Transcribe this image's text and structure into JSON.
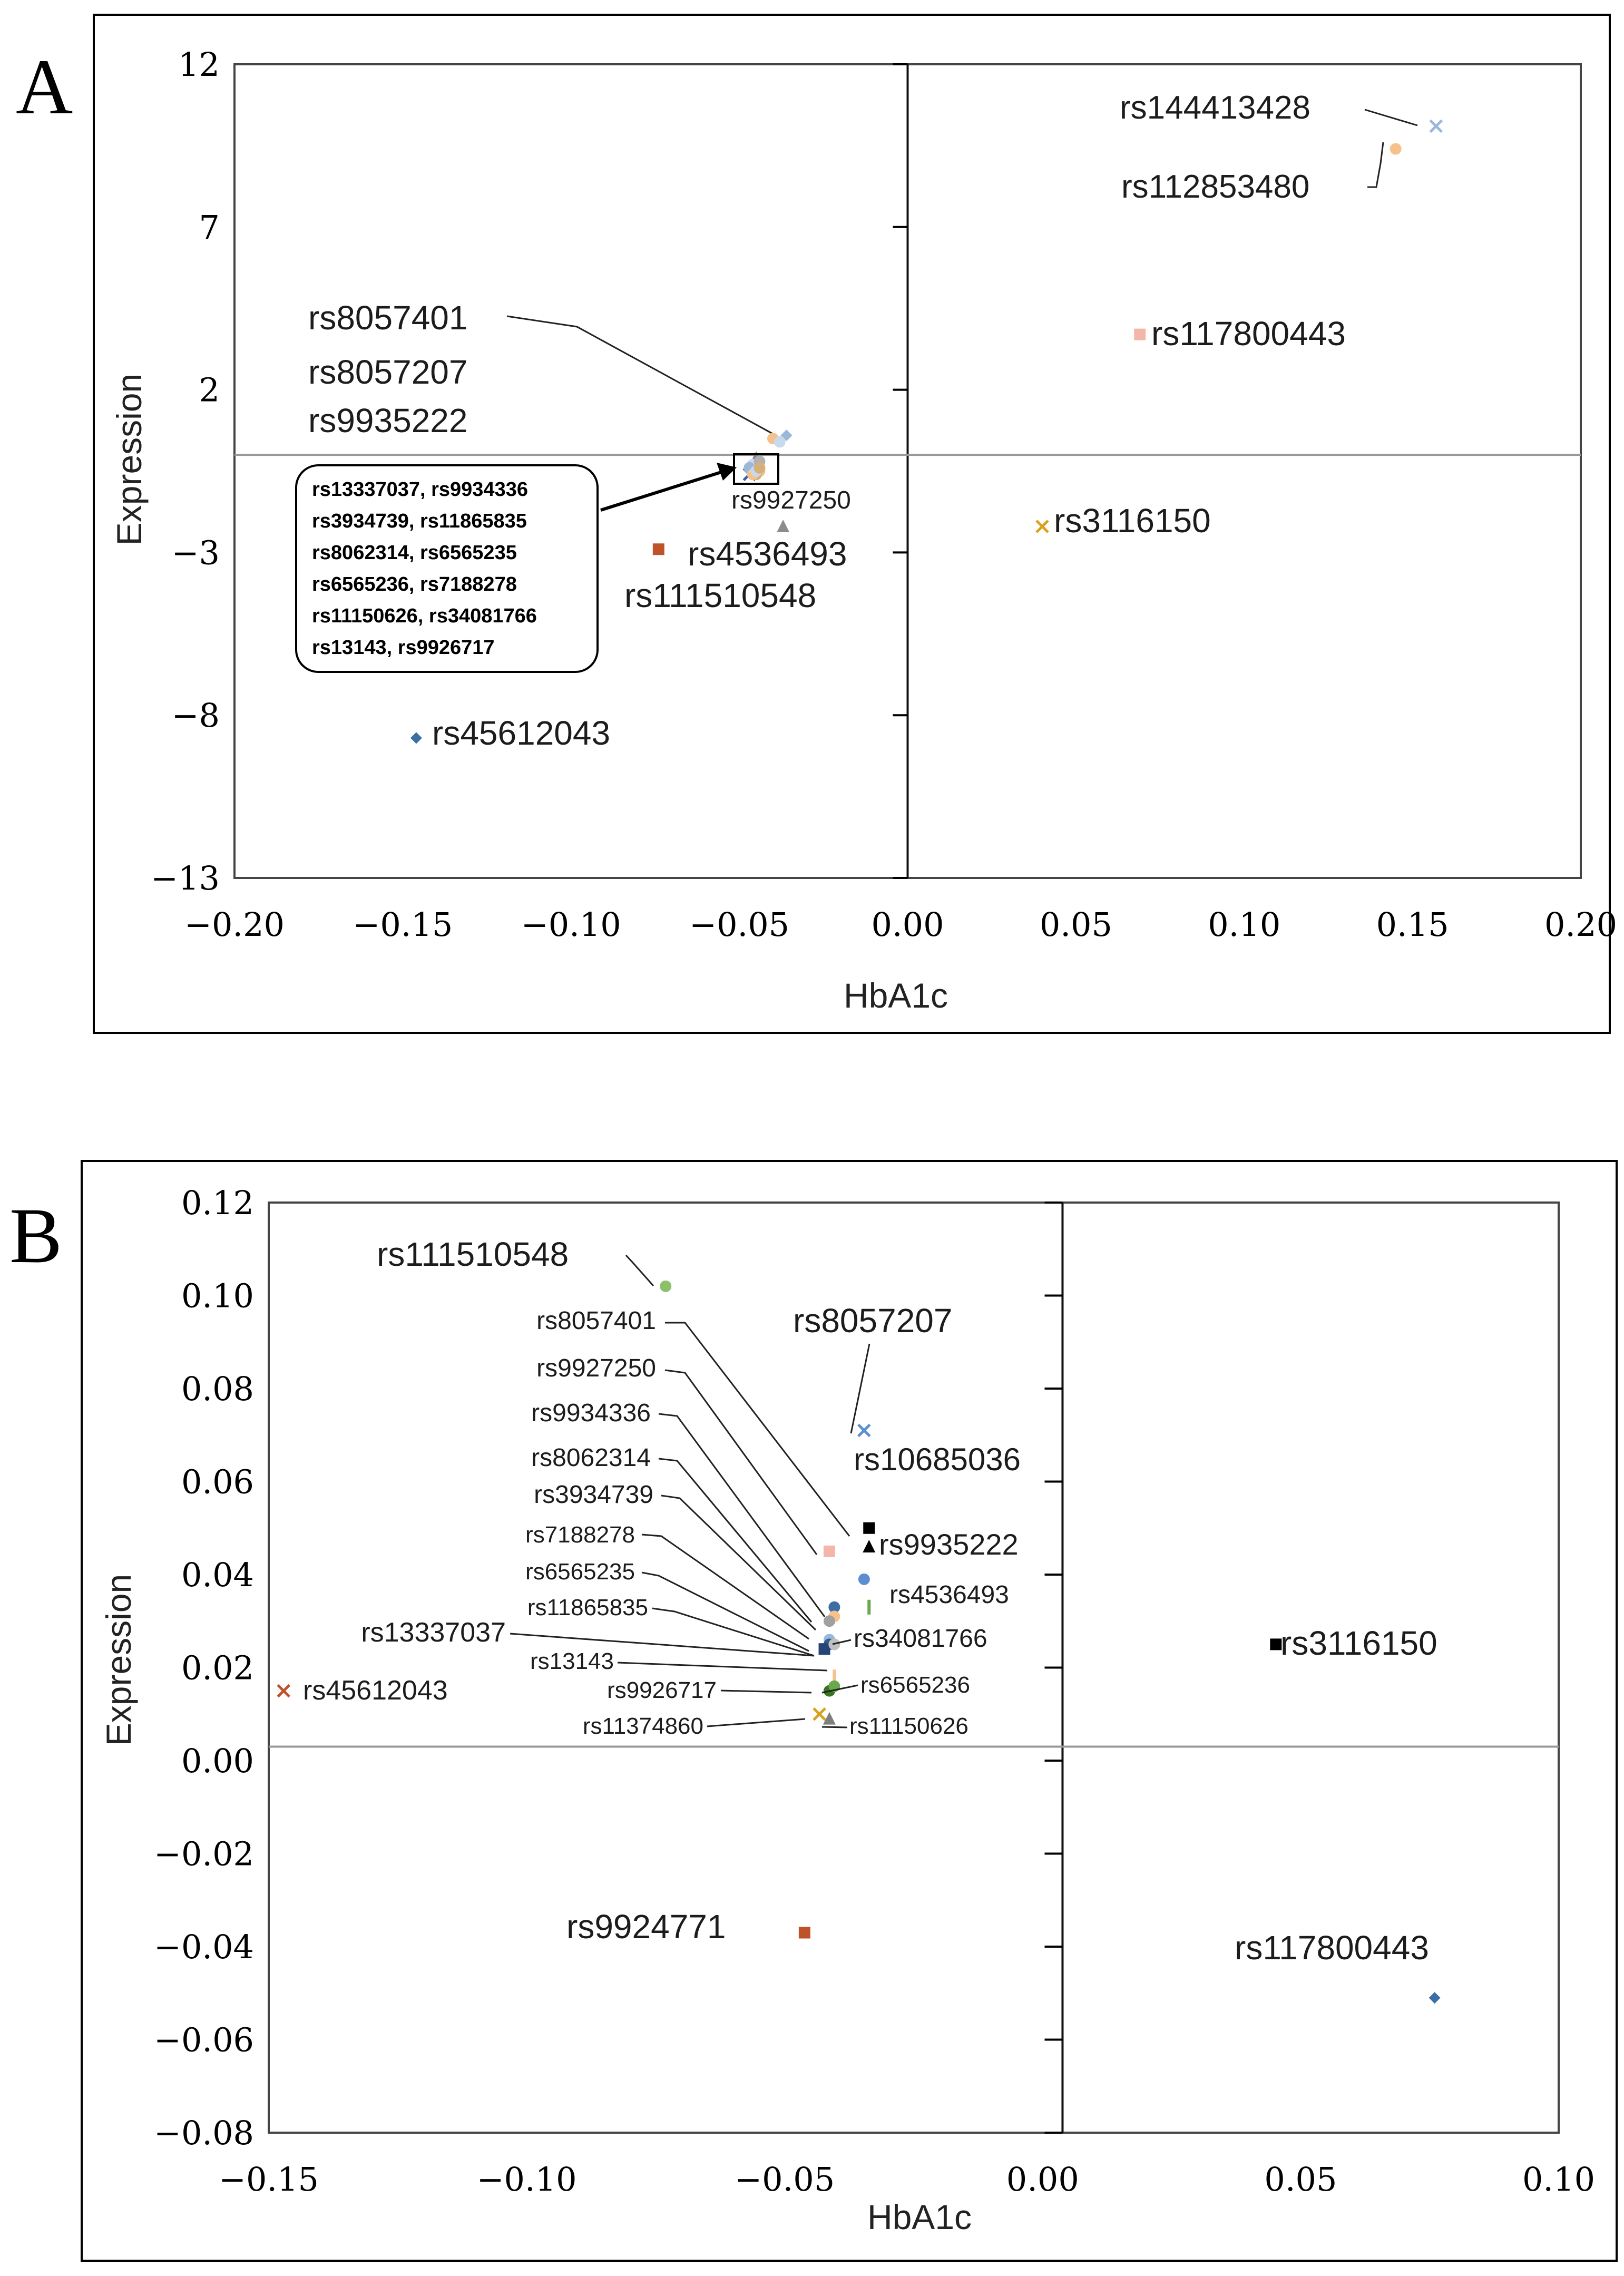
{
  "figure": {
    "panels": [
      "A",
      "B"
    ]
  },
  "chart_data": [
    {
      "panel": "A",
      "type": "scatter",
      "title": "",
      "xlabel": "HbA1c",
      "ylabel": "Expression",
      "xlim": [
        -0.2,
        0.2
      ],
      "ylim": [
        -13,
        12
      ],
      "xticks": [
        "-0.20",
        "-0.15",
        "-0.10",
        "-0.05",
        "0.00",
        "0.05",
        "0.10",
        "0.15",
        "0.20"
      ],
      "yticks": [
        "12",
        "7",
        "2",
        "−3",
        "−8",
        "−13"
      ],
      "grid": false,
      "points": [
        {
          "label": "rs144413428",
          "x": 0.157,
          "y": 10.1,
          "marker": "x",
          "color": "#9bb7da"
        },
        {
          "label": "rs112853480",
          "x": 0.145,
          "y": 9.4,
          "marker": "dot",
          "color": "#f6c18a"
        },
        {
          "label": "rs117800443",
          "x": 0.069,
          "y": 3.7,
          "marker": "square",
          "color": "#f4b6a9"
        },
        {
          "label": "rs3116150",
          "x": 0.04,
          "y": -2.2,
          "marker": "x",
          "color": "#d9a21b"
        },
        {
          "label": "rs8057401",
          "x": -0.036,
          "y": 0.6,
          "marker": "diamond",
          "color": "#9bb7da"
        },
        {
          "label": "rs8057207",
          "x": -0.04,
          "y": 0.5,
          "marker": "dot",
          "color": "#f6c18a"
        },
        {
          "label": "rs9935222",
          "x": -0.038,
          "y": 0.4,
          "marker": "dot",
          "color": "#c9d9ec"
        },
        {
          "label": "rs9927250",
          "x": -0.045,
          "y": -0.1,
          "marker": "triangle",
          "color": "#7f7f7f"
        },
        {
          "label": "rs4536493",
          "x": -0.037,
          "y": -2.2,
          "marker": "triangle",
          "color": "#8c8c8c"
        },
        {
          "label": "rs111510548",
          "x": -0.074,
          "y": -2.9,
          "marker": "square",
          "color": "#c0522a"
        },
        {
          "label": "rs45612043",
          "x": -0.146,
          "y": -8.7,
          "marker": "diamond",
          "color": "#3b6ea5"
        },
        {
          "label": "rs13337037",
          "x": -0.047,
          "y": -0.6,
          "marker": "x",
          "color": "#3464b0"
        },
        {
          "label": "rs9934336",
          "x": -0.045,
          "y": -0.4,
          "marker": "dot",
          "color": "#d6b07a"
        },
        {
          "label": "rs3934739",
          "x": -0.046,
          "y": -0.5,
          "marker": "dot",
          "color": "#9bb7da"
        },
        {
          "label": "rs11865835",
          "x": -0.045,
          "y": -0.3,
          "marker": "dot",
          "color": "#b0b0b0"
        },
        {
          "label": "rs8062314",
          "x": -0.044,
          "y": -0.5,
          "marker": "dot",
          "color": "#f6c18a"
        },
        {
          "label": "rs6565235",
          "x": -0.046,
          "y": -0.3,
          "marker": "dot",
          "color": "#c9d9ec"
        },
        {
          "label": "rs6565236",
          "x": -0.045,
          "y": -0.6,
          "marker": "dot",
          "color": "#d6b07a"
        },
        {
          "label": "rs7188278",
          "x": -0.047,
          "y": -0.4,
          "marker": "dot",
          "color": "#9bb7da"
        },
        {
          "label": "rs11150626",
          "x": -0.044,
          "y": -0.2,
          "marker": "dot",
          "color": "#b0b0b0"
        },
        {
          "label": "rs34081766",
          "x": -0.046,
          "y": -0.6,
          "marker": "dot",
          "color": "#f6c18a"
        },
        {
          "label": "rs13143",
          "x": -0.045,
          "y": -0.5,
          "marker": "dot",
          "color": "#c9d9ec"
        },
        {
          "label": "rs9926717",
          "x": -0.044,
          "y": -0.4,
          "marker": "dot",
          "color": "#d6b07a"
        }
      ],
      "annotations": {
        "cluster_box_lines": [
          "rs13337037, rs9934336",
          "rs3934739, rs11865835",
          "rs8062314, rs6565235",
          "rs6565236, rs7188278",
          "rs11150626, rs34081766",
          "rs13143, rs9926717"
        ]
      }
    },
    {
      "panel": "B",
      "type": "scatter",
      "title": "",
      "xlabel": "HbA1c",
      "ylabel": "Expression",
      "xlim": [
        -0.16,
        0.1
      ],
      "ylim": [
        -0.08,
        0.12
      ],
      "xticks": [
        "-0.15",
        "-0.10",
        "-0.05",
        "0.00",
        "0.05",
        "0.10"
      ],
      "yticks": [
        "0.12",
        "0.10",
        "0.08",
        "0.06",
        "0.04",
        "0.02",
        "0.00",
        "-0.02",
        "-0.04",
        "-0.06",
        "-0.08"
      ],
      "grid": false,
      "points": [
        {
          "label": "rs111510548",
          "x": -0.08,
          "y": 0.102,
          "marker": "dot",
          "color": "#8cc06a"
        },
        {
          "label": "rs8057207",
          "x": -0.04,
          "y": 0.071,
          "marker": "x",
          "color": "#5b8fd1"
        },
        {
          "label": "rs10685036",
          "x": -0.039,
          "y": 0.05,
          "marker": "square",
          "color": "#000000"
        },
        {
          "label": "rs9935222",
          "x": -0.039,
          "y": 0.046,
          "marker": "triangle",
          "color": "#000000"
        },
        {
          "label": "rs4536493",
          "x": -0.039,
          "y": 0.033,
          "marker": "dash",
          "color": "#6aa84f"
        },
        {
          "label": "rs8057401",
          "x": -0.04,
          "y": 0.039,
          "marker": "dot",
          "color": "#5b8fd1"
        },
        {
          "label": "rs9927250",
          "x": -0.047,
          "y": 0.045,
          "marker": "square",
          "color": "#f4b6a9"
        },
        {
          "label": "rs9934336",
          "x": -0.046,
          "y": 0.033,
          "marker": "dot",
          "color": "#3b6ea5"
        },
        {
          "label": "rs8062314",
          "x": -0.046,
          "y": 0.031,
          "marker": "dot",
          "color": "#f6c18a"
        },
        {
          "label": "rs3934739",
          "x": -0.047,
          "y": 0.03,
          "marker": "dot",
          "color": "#a0a0a0"
        },
        {
          "label": "rs7188278",
          "x": -0.047,
          "y": 0.026,
          "marker": "dot",
          "color": "#9bb7da"
        },
        {
          "label": "rs6565235",
          "x": -0.047,
          "y": 0.025,
          "marker": "dot",
          "color": "#2e5f8a"
        },
        {
          "label": "rs11865835",
          "x": -0.046,
          "y": 0.025,
          "marker": "dot",
          "color": "#6aa84f"
        },
        {
          "label": "rs13337037",
          "x": -0.048,
          "y": 0.024,
          "marker": "square",
          "color": "#264478"
        },
        {
          "label": "rs34081766",
          "x": -0.046,
          "y": 0.025,
          "marker": "dot",
          "color": "#c0c0c0"
        },
        {
          "label": "rs13143",
          "x": -0.046,
          "y": 0.018,
          "marker": "dash",
          "color": "#f6c18a"
        },
        {
          "label": "rs9926717",
          "x": -0.047,
          "y": 0.015,
          "marker": "dot",
          "color": "#38761d"
        },
        {
          "label": "rs6565236",
          "x": -0.046,
          "y": 0.016,
          "marker": "dot",
          "color": "#6aa84f"
        },
        {
          "label": "rs11374860",
          "x": -0.049,
          "y": 0.01,
          "marker": "x",
          "color": "#d9a21b"
        },
        {
          "label": "rs11150626",
          "x": -0.047,
          "y": 0.009,
          "marker": "triangle",
          "color": "#7f7f7f"
        },
        {
          "label": "rs45612043",
          "x": -0.157,
          "y": 0.015,
          "marker": "x",
          "color": "#c0522a"
        },
        {
          "label": "rs9924771",
          "x": -0.052,
          "y": -0.037,
          "marker": "square",
          "color": "#c0522a"
        },
        {
          "label": "rs3116150",
          "x": 0.043,
          "y": 0.025,
          "marker": "square",
          "color": "#000000"
        },
        {
          "label": "rs117800443",
          "x": 0.075,
          "y": -0.051,
          "marker": "diamond",
          "color": "#3b6ea5"
        }
      ],
      "annotations": {}
    }
  ]
}
